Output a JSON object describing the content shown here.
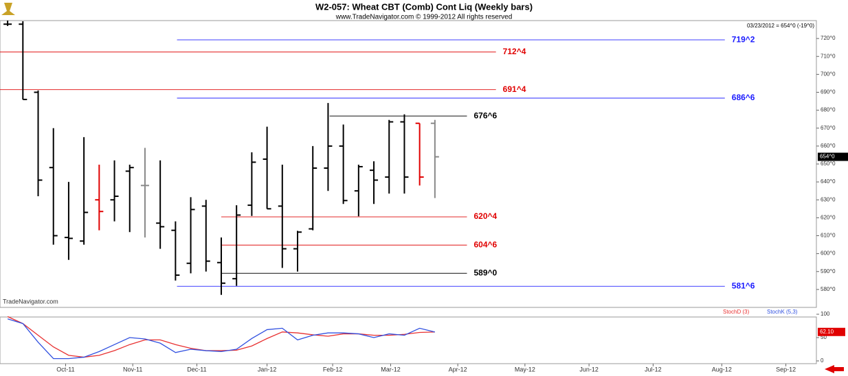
{
  "chart_data": [
    {
      "type": "ohlc",
      "title": "W2-057:  Wheat CBT (Comb) Cont Liq  (Weekly bars)",
      "subtitle": "www.TradeNavigator.com © 1999-2012 All rights reserved",
      "info": "03/23/2012 = 654^0 (-19^0)",
      "watermark": "TradeNavigator.com",
      "last_price": {
        "value": 654,
        "label": "654^0"
      },
      "x": [
        0,
        1,
        2,
        3,
        4,
        5,
        6,
        7,
        8,
        9,
        10,
        11,
        12,
        13,
        14,
        15,
        16,
        17,
        18,
        19,
        20,
        21,
        22,
        23,
        24,
        25,
        26,
        27,
        28
      ],
      "open": [
        728,
        728,
        690,
        648,
        609,
        607,
        630,
        630,
        646,
        638,
        617,
        613,
        594.6,
        626.5,
        595,
        586,
        627,
        652.7,
        626.5,
        602.7,
        613.8,
        647.7,
        660,
        635,
        646.5,
        642.7,
        673.5,
        672.7,
        672.7
      ],
      "high": [
        730,
        729.6,
        691,
        670,
        640,
        665,
        649.6,
        652,
        649.6,
        659,
        652,
        618,
        631.5,
        630,
        609,
        627,
        656.5,
        670.8,
        649.6,
        612.7,
        660,
        684,
        672,
        649.6,
        651.5,
        674.6,
        677.7,
        672.7,
        674.6
      ],
      "low": [
        727,
        686,
        632,
        605,
        596.5,
        605,
        613,
        618,
        612,
        609,
        602.7,
        585,
        589,
        590,
        577,
        582,
        621,
        625,
        592,
        590,
        613,
        635,
        627.7,
        620.8,
        627.7,
        633.5,
        633.5,
        638,
        631
      ],
      "close": [
        728,
        686,
        641,
        610,
        608.5,
        623,
        623.5,
        632,
        648,
        638,
        615,
        588,
        624.6,
        595.8,
        583.5,
        621.5,
        651,
        625,
        602.7,
        612,
        647.7,
        660,
        629.6,
        648.5,
        641,
        673.5,
        642.7,
        642.7,
        654
      ],
      "colors": [
        "#000000",
        "#000000",
        "#000000",
        "#000000",
        "#000000",
        "#000000",
        "#e00000",
        "#000000",
        "#000000",
        "#888888",
        "#000000",
        "#000000",
        "#000000",
        "#000000",
        "#000000",
        "#000000",
        "#000000",
        "#000000",
        "#000000",
        "#000000",
        "#000000",
        "#000000",
        "#000000",
        "#000000",
        "#000000",
        "#000000",
        "#000000",
        "#e00000",
        "#888888"
      ],
      "levels": [
        {
          "value": 719.25,
          "label": "719^2",
          "color": "#1a1aff",
          "start": 11.1,
          "end": 47
        },
        {
          "value": 712.5,
          "label": "712^4",
          "color": "#e00000",
          "start": -0.5,
          "end": 32
        },
        {
          "value": 691.5,
          "label": "691^4",
          "color": "#e00000",
          "start": -0.5,
          "end": 32
        },
        {
          "value": 686.75,
          "label": "686^6",
          "color": "#1a1aff",
          "start": 11.1,
          "end": 47
        },
        {
          "value": 676.75,
          "label": "676^6",
          "color": "#000000",
          "start": 21.1,
          "end": 30.1
        },
        {
          "value": 620.5,
          "label": "620^4",
          "color": "#e00000",
          "start": 14,
          "end": 30.1
        },
        {
          "value": 604.75,
          "label": "604^6",
          "color": "#e00000",
          "start": 14,
          "end": 30.1
        },
        {
          "value": 589,
          "label": "589^0",
          "color": "#000000",
          "start": 14,
          "end": 30.1
        },
        {
          "value": 581.75,
          "label": "581^6",
          "color": "#1a1aff",
          "start": 11.1,
          "end": 47
        }
      ],
      "xlim": [
        -0.5,
        53
      ],
      "xticks": [
        {
          "value": 3.8,
          "label": "Oct-11"
        },
        {
          "value": 8.2,
          "label": "Nov-11"
        },
        {
          "value": 12.4,
          "label": "Dec-11"
        },
        {
          "value": 17,
          "label": "Jan-12"
        },
        {
          "value": 21.3,
          "label": "Feb-12"
        },
        {
          "value": 25.1,
          "label": "Mar-12"
        },
        {
          "value": 29.5,
          "label": "Apr-12"
        },
        {
          "value": 33.9,
          "label": "May-12"
        },
        {
          "value": 38.1,
          "label": "Jun-12"
        },
        {
          "value": 42.3,
          "label": "Jul-12"
        },
        {
          "value": 46.8,
          "label": "Aug-12"
        },
        {
          "value": 51,
          "label": "Sep-12"
        }
      ],
      "ylim": [
        570,
        730
      ],
      "yticks": [
        {
          "value": 580,
          "label": "580^0"
        },
        {
          "value": 590,
          "label": "590^0"
        },
        {
          "value": 600,
          "label": "600^0"
        },
        {
          "value": 610,
          "label": "610^0"
        },
        {
          "value": 620,
          "label": "620^0"
        },
        {
          "value": 630,
          "label": "630^0"
        },
        {
          "value": 640,
          "label": "640^0"
        },
        {
          "value": 650,
          "label": "650^0"
        },
        {
          "value": 660,
          "label": "660^0"
        },
        {
          "value": 670,
          "label": "670^0"
        },
        {
          "value": 680,
          "label": "680^0"
        },
        {
          "value": 690,
          "label": "690^0"
        },
        {
          "value": 700,
          "label": "700^0"
        },
        {
          "value": 710,
          "label": "710^0"
        },
        {
          "value": 720,
          "label": "720^0"
        }
      ]
    },
    {
      "type": "line",
      "x": [
        0,
        1,
        2,
        3,
        4,
        5,
        6,
        7,
        8,
        9,
        10,
        11,
        12,
        13,
        14,
        15,
        16,
        17,
        18,
        19,
        20,
        21,
        22,
        23,
        24,
        25,
        26,
        27,
        28
      ],
      "series": [
        {
          "name": "StochD (3)",
          "color": "#e83030",
          "values": [
            95,
            80,
            55,
            30,
            12,
            8,
            12,
            22,
            35,
            45,
            45,
            35,
            27,
            22,
            22,
            23,
            32,
            48,
            62,
            60,
            56,
            53,
            58,
            58,
            55,
            55,
            57,
            61,
            62
          ]
        },
        {
          "name": "StochK (5,3)",
          "color": "#3050e0",
          "values": [
            90,
            80,
            40,
            5,
            5,
            8,
            20,
            35,
            50,
            47,
            38,
            18,
            25,
            22,
            20,
            25,
            48,
            67,
            70,
            45,
            55,
            60,
            60,
            58,
            50,
            58,
            55,
            70,
            62
          ]
        }
      ],
      "last_value": {
        "value": 62.1,
        "label": "62.10"
      },
      "xlim": [
        -0.5,
        53
      ],
      "ylim": [
        0,
        100
      ],
      "yticks": [
        0,
        50,
        100
      ]
    }
  ]
}
